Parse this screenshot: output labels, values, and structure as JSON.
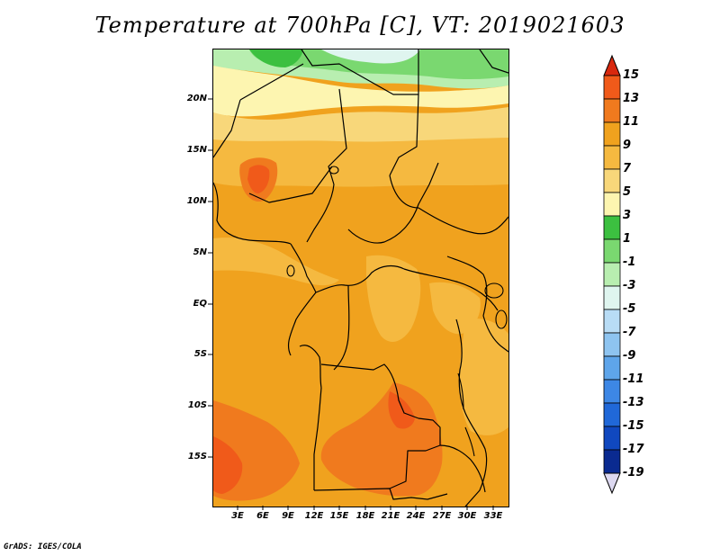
{
  "title": "Temperature at 700hPa [C], VT: 2019021603",
  "credit": "GrADS: IGES/COLA",
  "map": {
    "lat_labels": [
      "20N",
      "15N",
      "10N",
      "5N",
      "EQ",
      "5S",
      "10S",
      "15S"
    ],
    "lon_labels": [
      "3E",
      "6E",
      "9E",
      "12E",
      "15E",
      "18E",
      "21E",
      "24E",
      "27E",
      "30E",
      "33E"
    ]
  },
  "colorbar": {
    "levels": [
      "15",
      "13",
      "11",
      "9",
      "7",
      "5",
      "3",
      "1",
      "-1",
      "-3",
      "-5",
      "-7",
      "-9",
      "-11",
      "-13",
      "-15",
      "-17",
      "-19"
    ],
    "colors": [
      "#e8401a",
      "#f05a1a",
      "#f07a1e",
      "#f0a21e",
      "#f5b940",
      "#f8d77a",
      "#fdf5b0",
      "#3cc040",
      "#7ad870",
      "#b8eeb0",
      "#dff5ef",
      "#b8dcf5",
      "#8ec4f0",
      "#5ea5ea",
      "#3d87e5",
      "#2068d8",
      "#1048bf",
      "#0a2a90"
    ],
    "top_color": "#d8280e",
    "bottom_color": "#dcd8f0"
  }
}
